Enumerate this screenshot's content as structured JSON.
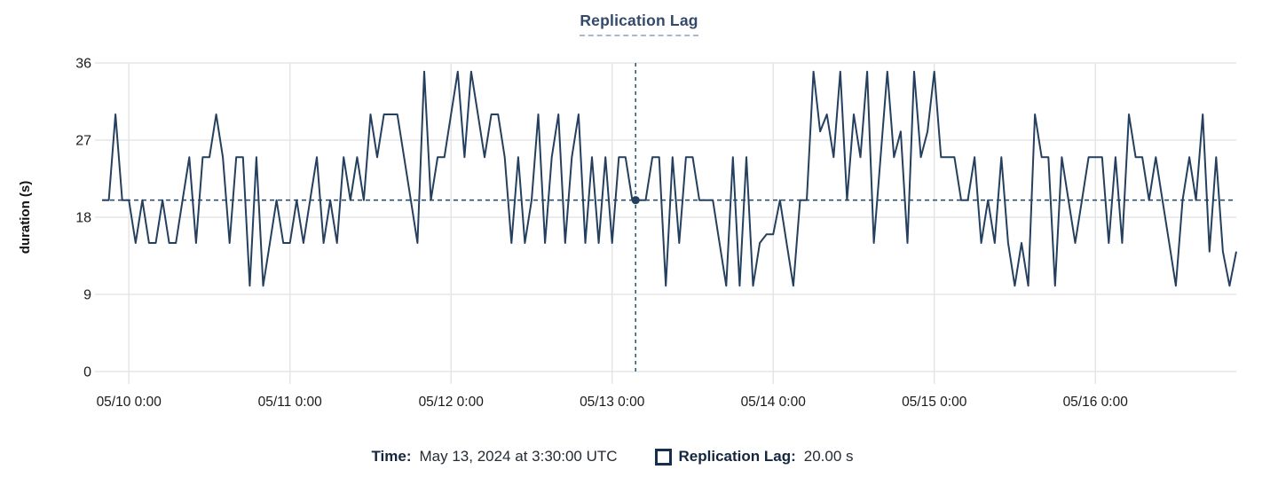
{
  "title": "Replication Lag",
  "tooltip": {
    "time_label": "Time:",
    "time_value": "May 13, 2024 at 3:30:00 UTC",
    "series_label": "Replication Lag:",
    "series_value": "20.00 s"
  },
  "colors": {
    "line": "#24405e",
    "dot": "#24405e",
    "dash_horizontal": "#2e526e",
    "dash_vertical": "#2c607b",
    "grid": "#e5e5e5",
    "axis_text": "#1a1a1a",
    "axis_title": "#111111",
    "title": "#33496b",
    "title_underline": "#a9b8cf",
    "legend_label": "#14273f",
    "legend_value": "#252b33",
    "swatch_border": "#15304e"
  },
  "chart_data": {
    "type": "line",
    "title": "Replication Lag",
    "xlabel": "",
    "ylabel": "duration (s)",
    "ylim": [
      0,
      36
    ],
    "yticks": [
      0,
      9,
      18,
      27,
      36
    ],
    "x_unit": "hours",
    "x_total_hours": 169,
    "xticks": [
      {
        "label": "05/10 0:00",
        "hour": 4
      },
      {
        "label": "05/11 0:00",
        "hour": 28
      },
      {
        "label": "05/12 0:00",
        "hour": 52
      },
      {
        "label": "05/13 0:00",
        "hour": 76
      },
      {
        "label": "05/14 0:00",
        "hour": 100
      },
      {
        "label": "05/15 0:00",
        "hour": 124
      },
      {
        "label": "05/16 0:00",
        "hour": 148
      }
    ],
    "grid": true,
    "legend_position": "bottom",
    "reference_value": 20,
    "crosshair": {
      "hour": 79.5,
      "value": 20,
      "time": "May 13, 2024 at 3:30:00 UTC"
    },
    "series": [
      {
        "name": "Replication Lag",
        "values": [
          20,
          20,
          30,
          20,
          20,
          15,
          20,
          15,
          15,
          20,
          15,
          15,
          20,
          25,
          15,
          25,
          25,
          30,
          25,
          15,
          25,
          25,
          10,
          25,
          10,
          15,
          20,
          15,
          15,
          20,
          15,
          20,
          25,
          15,
          20,
          15,
          25,
          20,
          25,
          20,
          30,
          25,
          30,
          30,
          30,
          25,
          20,
          15,
          35,
          20,
          25,
          25,
          30,
          35,
          25,
          35,
          30,
          25,
          30,
          30,
          25,
          15,
          25,
          15,
          20,
          30,
          15,
          25,
          30,
          15,
          25,
          30,
          15,
          25,
          15,
          25,
          15,
          25,
          25,
          20,
          20,
          20,
          25,
          25,
          10,
          25,
          15,
          25,
          25,
          20,
          20,
          20,
          15,
          10,
          25,
          10,
          25,
          10,
          15,
          16,
          16,
          20,
          15,
          10,
          20,
          20,
          35,
          28,
          30,
          25,
          35,
          20,
          30,
          25,
          35,
          15,
          25,
          35,
          25,
          28,
          15,
          35,
          25,
          28,
          35,
          25,
          25,
          25,
          20,
          20,
          25,
          15,
          20,
          15,
          25,
          15,
          10,
          15,
          10,
          30,
          25,
          25,
          10,
          25,
          20,
          15,
          20,
          25,
          25,
          25,
          15,
          25,
          15,
          30,
          25,
          25,
          20,
          25,
          20,
          15,
          10,
          20,
          25,
          20,
          30,
          14,
          25,
          14,
          10,
          14
        ]
      }
    ]
  }
}
